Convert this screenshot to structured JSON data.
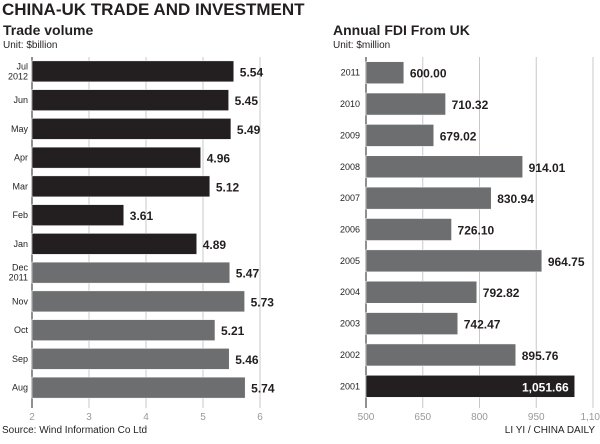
{
  "title": "CHINA-UK TRADE AND INVESTMENT",
  "source": "Source: Wind Information Co Ltd",
  "credit": "LI YI / CHINA DAILY",
  "colors": {
    "dark": "#231f20",
    "gray": "#6d6e70",
    "grid": "#c8c8c8"
  },
  "chart_data": [
    {
      "type": "bar",
      "orientation": "horizontal",
      "title": "Trade volume",
      "subtitle": "Unit: $billion",
      "categories": [
        "Jul 2012",
        "Jun",
        "May",
        "Apr",
        "Mar",
        "Feb",
        "Jan",
        "Dec 2011",
        "Nov",
        "Oct",
        "Sep",
        "Aug"
      ],
      "values": [
        5.54,
        5.45,
        5.49,
        4.96,
        5.12,
        3.61,
        4.89,
        5.47,
        5.73,
        5.21,
        5.46,
        5.74
      ],
      "labels": [
        "5.54",
        "5.45",
        "5.49",
        "4.96",
        "5.12",
        "3.61",
        "4.89",
        "5.47",
        "5.73",
        "5.21",
        "5.46",
        "5.74"
      ],
      "bar_colors": [
        "dark",
        "dark",
        "dark",
        "dark",
        "dark",
        "dark",
        "dark",
        "gray",
        "gray",
        "gray",
        "gray",
        "gray"
      ],
      "xlim": [
        2,
        6
      ],
      "xticks": [
        "2",
        "3",
        "4",
        "5",
        "6"
      ],
      "grid": true
    },
    {
      "type": "bar",
      "orientation": "horizontal",
      "title": "Annual FDI From UK",
      "subtitle": "Unit: $million",
      "categories": [
        "2011",
        "2010",
        "2009",
        "2008",
        "2007",
        "2006",
        "2005",
        "2004",
        "2003",
        "2002",
        "2001"
      ],
      "values": [
        600.0,
        710.32,
        679.02,
        914.01,
        830.94,
        726.1,
        964.75,
        792.82,
        742.47,
        895.76,
        1051.66
      ],
      "labels": [
        "600.00",
        "710.32",
        "679.02",
        "914.01",
        "830.94",
        "726.10",
        "964.75",
        "792.82",
        "742.47",
        "895.76",
        "1,051.66"
      ],
      "bar_colors": [
        "gray",
        "gray",
        "gray",
        "gray",
        "gray",
        "gray",
        "gray",
        "gray",
        "gray",
        "gray",
        "dark"
      ],
      "xlim": [
        500,
        1100
      ],
      "xticks": [
        "500",
        "650",
        "800",
        "950",
        "1,100"
      ],
      "grid": true
    }
  ]
}
